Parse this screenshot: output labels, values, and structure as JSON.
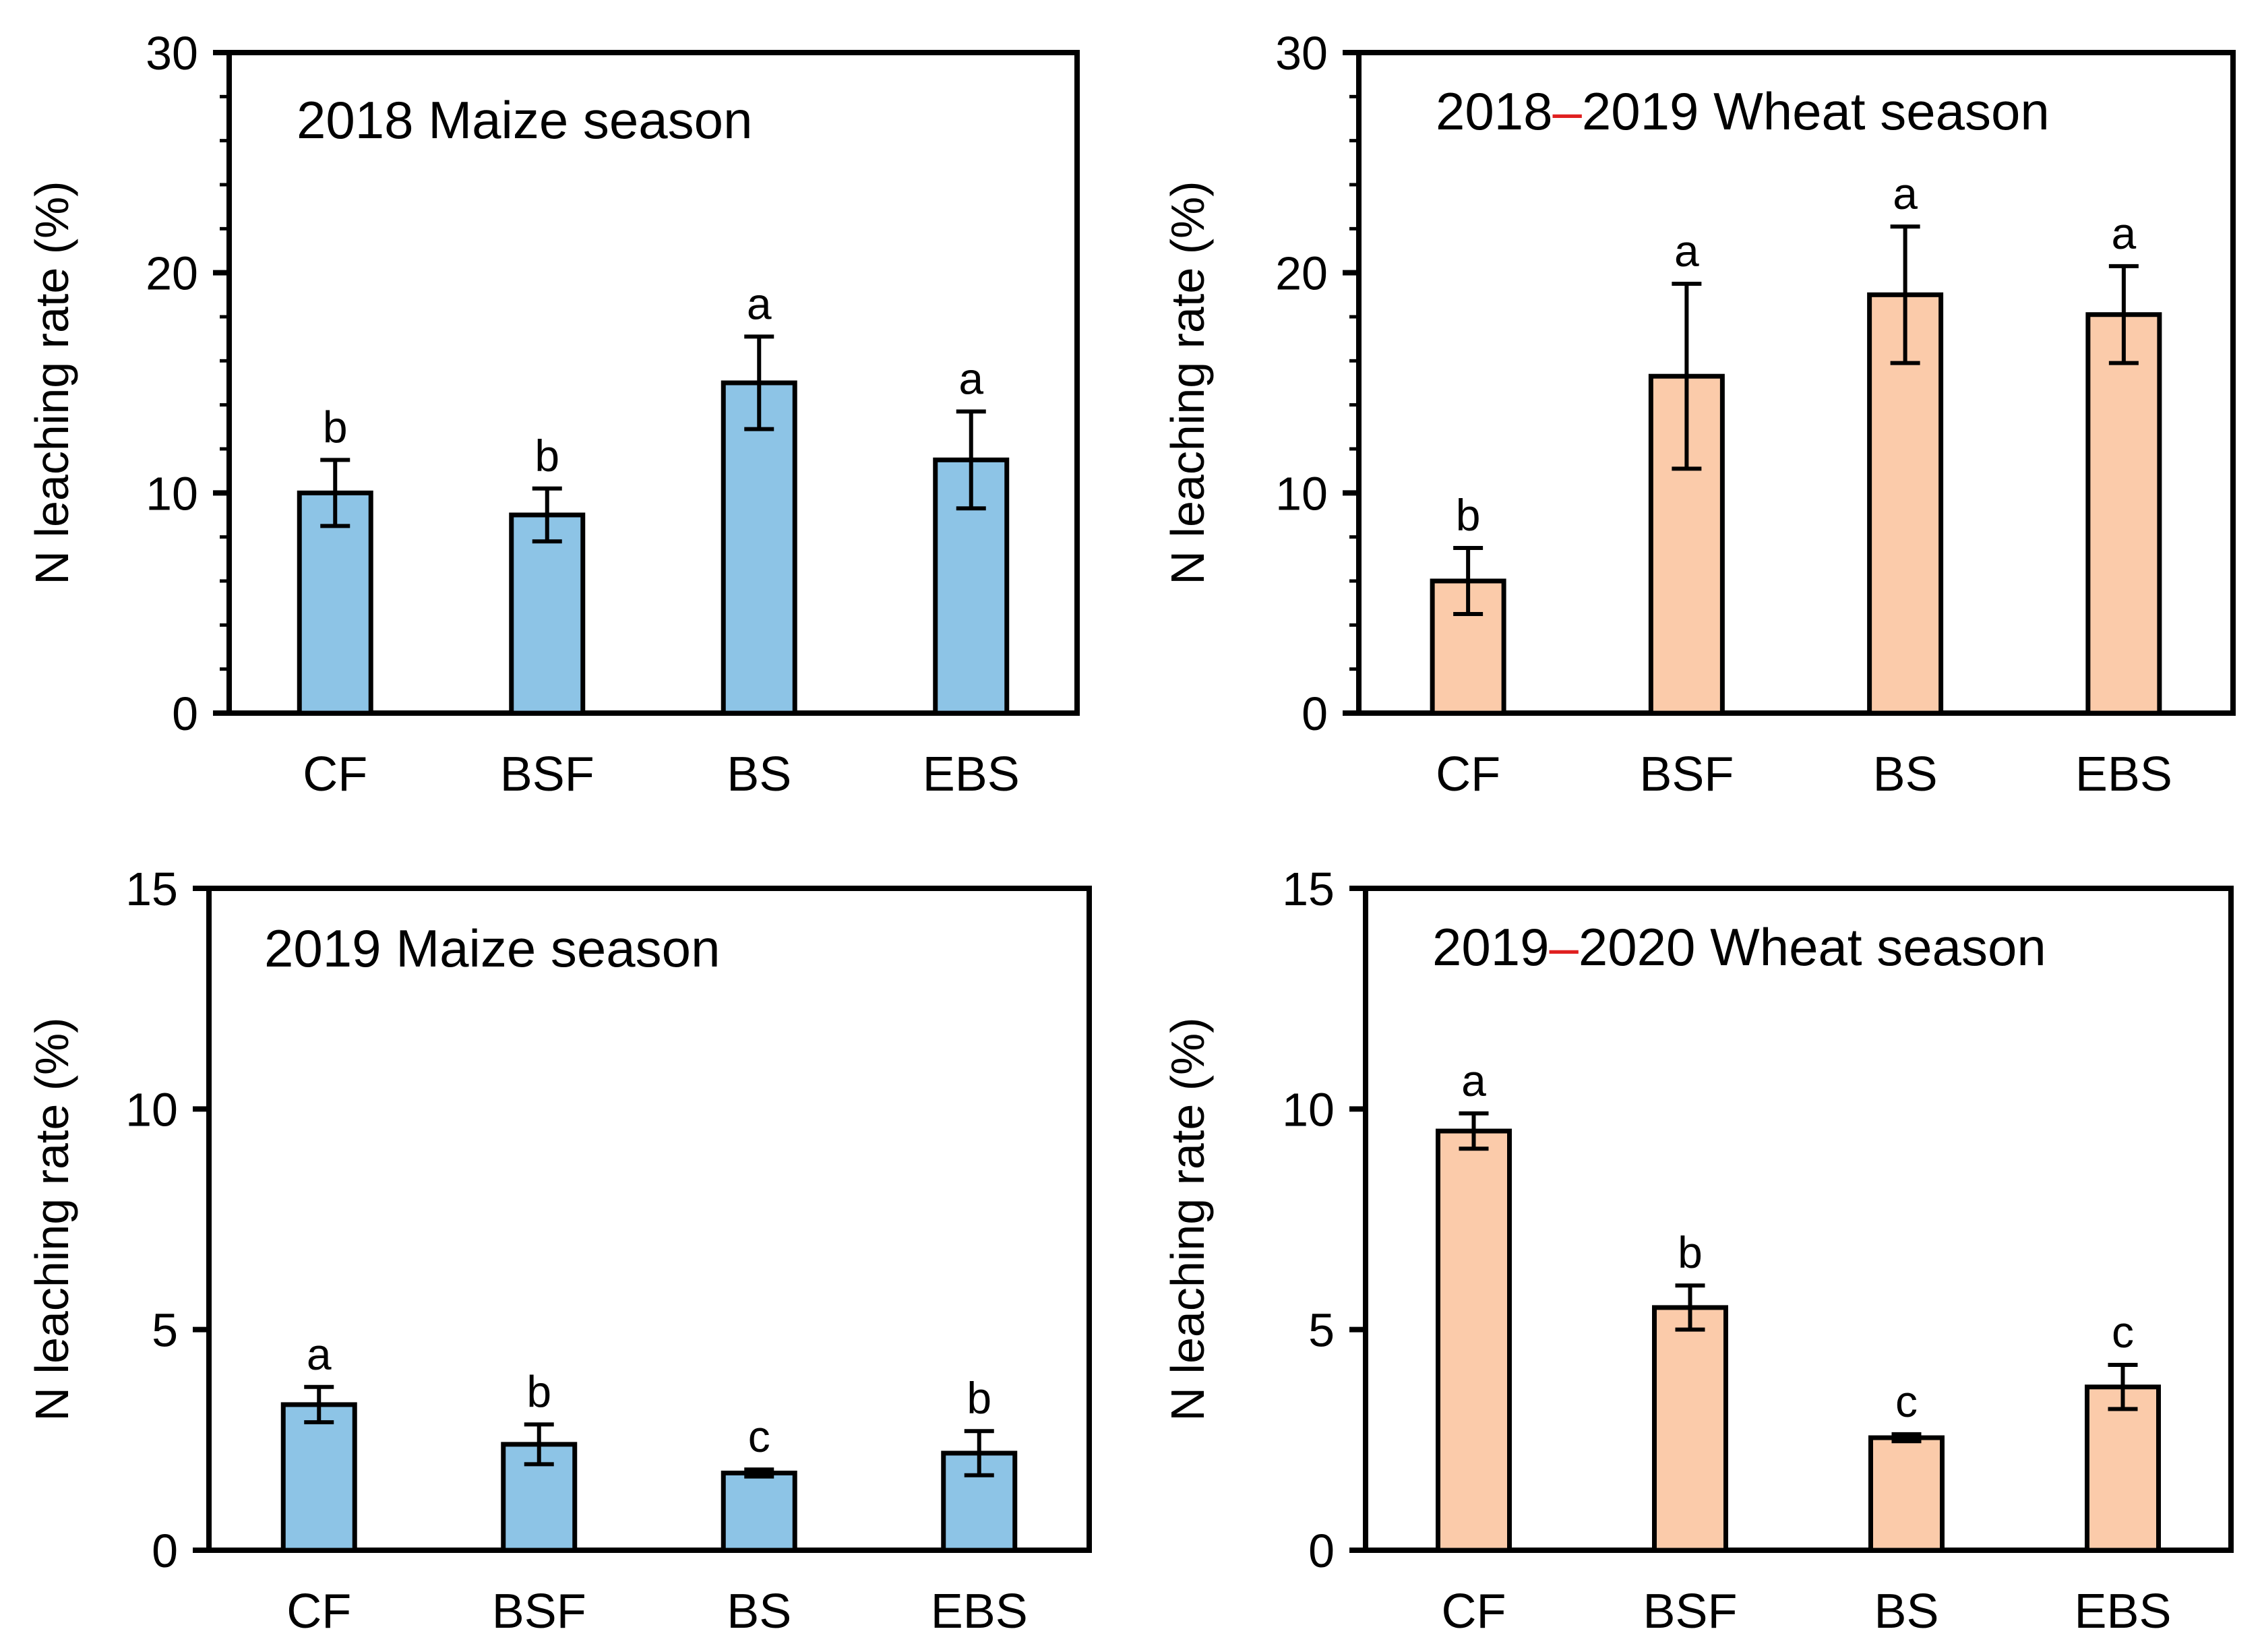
{
  "colors": {
    "maize_fill": "#8DC4E6",
    "wheat_fill": "#FBCBAA",
    "axis": "#000000",
    "dash_accent": "#E02020"
  },
  "chart_data": [
    {
      "id": "maize-2018",
      "type": "bar",
      "title_parts": [
        "2018 Maize season"
      ],
      "ylabel": "N leaching rate (%)",
      "xlabel": "",
      "categories": [
        "CF",
        "BSF",
        "BS",
        "EBS"
      ],
      "values": [
        10.0,
        9.0,
        15.0,
        11.5
      ],
      "errors": [
        1.5,
        1.2,
        2.1,
        2.2
      ],
      "letters": [
        "b",
        "b",
        "a",
        "a"
      ],
      "ylim": [
        0,
        30
      ],
      "yticks": [
        0,
        10,
        20,
        30
      ],
      "minor_step": 2,
      "fill": "maize"
    },
    {
      "id": "wheat-2018-2019",
      "type": "bar",
      "title_parts": [
        "2018",
        "–",
        "2019 Wheat season"
      ],
      "ylabel": "N leaching rate (%)",
      "xlabel": "",
      "categories": [
        "CF",
        "BSF",
        "BS",
        "EBS"
      ],
      "values": [
        6.0,
        15.3,
        19.0,
        18.1
      ],
      "errors": [
        1.5,
        4.2,
        3.1,
        2.2
      ],
      "letters": [
        "b",
        "a",
        "a",
        "a"
      ],
      "ylim": [
        0,
        30
      ],
      "yticks": [
        0,
        10,
        20,
        30
      ],
      "minor_step": 2,
      "fill": "wheat"
    },
    {
      "id": "maize-2019",
      "type": "bar",
      "title_parts": [
        "2019 Maize season"
      ],
      "ylabel": "N leaching rate (%)",
      "xlabel": "",
      "categories": [
        "CF",
        "BSF",
        "BS",
        "EBS"
      ],
      "values": [
        3.3,
        2.4,
        1.75,
        2.2
      ],
      "errors": [
        0.4,
        0.45,
        0.08,
        0.5
      ],
      "letters": [
        "a",
        "b",
        "c",
        "b"
      ],
      "ylim": [
        0,
        15
      ],
      "yticks": [
        0,
        5,
        10,
        15
      ],
      "minor_step": 0,
      "fill": "maize"
    },
    {
      "id": "wheat-2019-2020",
      "type": "bar",
      "title_parts": [
        "2019",
        "–",
        "2020 Wheat season"
      ],
      "ylabel": "N leaching rate (%)",
      "xlabel": "",
      "categories": [
        "CF",
        "BSF",
        "BS",
        "EBS"
      ],
      "values": [
        9.5,
        5.5,
        2.55,
        3.7
      ],
      "errors": [
        0.4,
        0.5,
        0.08,
        0.5
      ],
      "letters": [
        "a",
        "b",
        "c",
        "c"
      ],
      "ylim": [
        0,
        15
      ],
      "yticks": [
        0,
        5,
        10,
        15
      ],
      "minor_step": 0,
      "fill": "wheat"
    }
  ]
}
